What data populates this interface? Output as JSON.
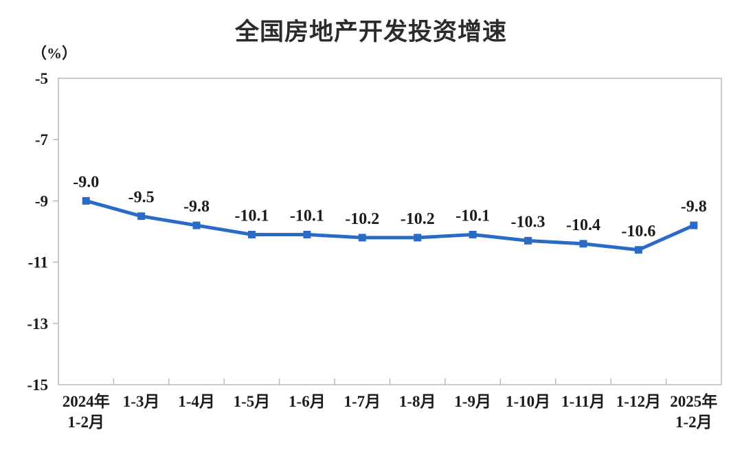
{
  "page": {
    "title": "全国房地产开发投资增速",
    "y_unit_label": "（%）"
  },
  "chart_data": {
    "type": "line",
    "title": "全国房地产开发投资增速",
    "ylabel": "（%）",
    "xlabel": "",
    "categories": [
      "2024年\n1-2月",
      "1-3月",
      "1-4月",
      "1-5月",
      "1-6月",
      "1-7月",
      "1-8月",
      "1-9月",
      "1-10月",
      "1-11月",
      "1-12月",
      "2025年\n1-2月"
    ],
    "values": [
      -9.0,
      -9.5,
      -9.8,
      -10.1,
      -10.1,
      -10.2,
      -10.2,
      -10.1,
      -10.3,
      -10.4,
      -10.6,
      -9.8
    ],
    "data_labels": [
      "-9.0",
      "-9.5",
      "-9.8",
      "-10.1",
      "-10.1",
      "-10.2",
      "-10.2",
      "-10.1",
      "-10.3",
      "-10.4",
      "-10.6",
      "-9.8"
    ],
    "ylim": [
      -15,
      -5
    ],
    "yticks": [
      -5,
      -7,
      -9,
      -11,
      -13,
      -15
    ],
    "ytick_labels": [
      "-5",
      "-7",
      "-9",
      "-11",
      "-13",
      "-15"
    ],
    "grid": false,
    "legend": "none",
    "line_color": "#2b6bc8",
    "marker": "square",
    "axis_color": "#b8b8b8",
    "label_color": "#1b1b1b",
    "background_color": "#ffffff"
  }
}
